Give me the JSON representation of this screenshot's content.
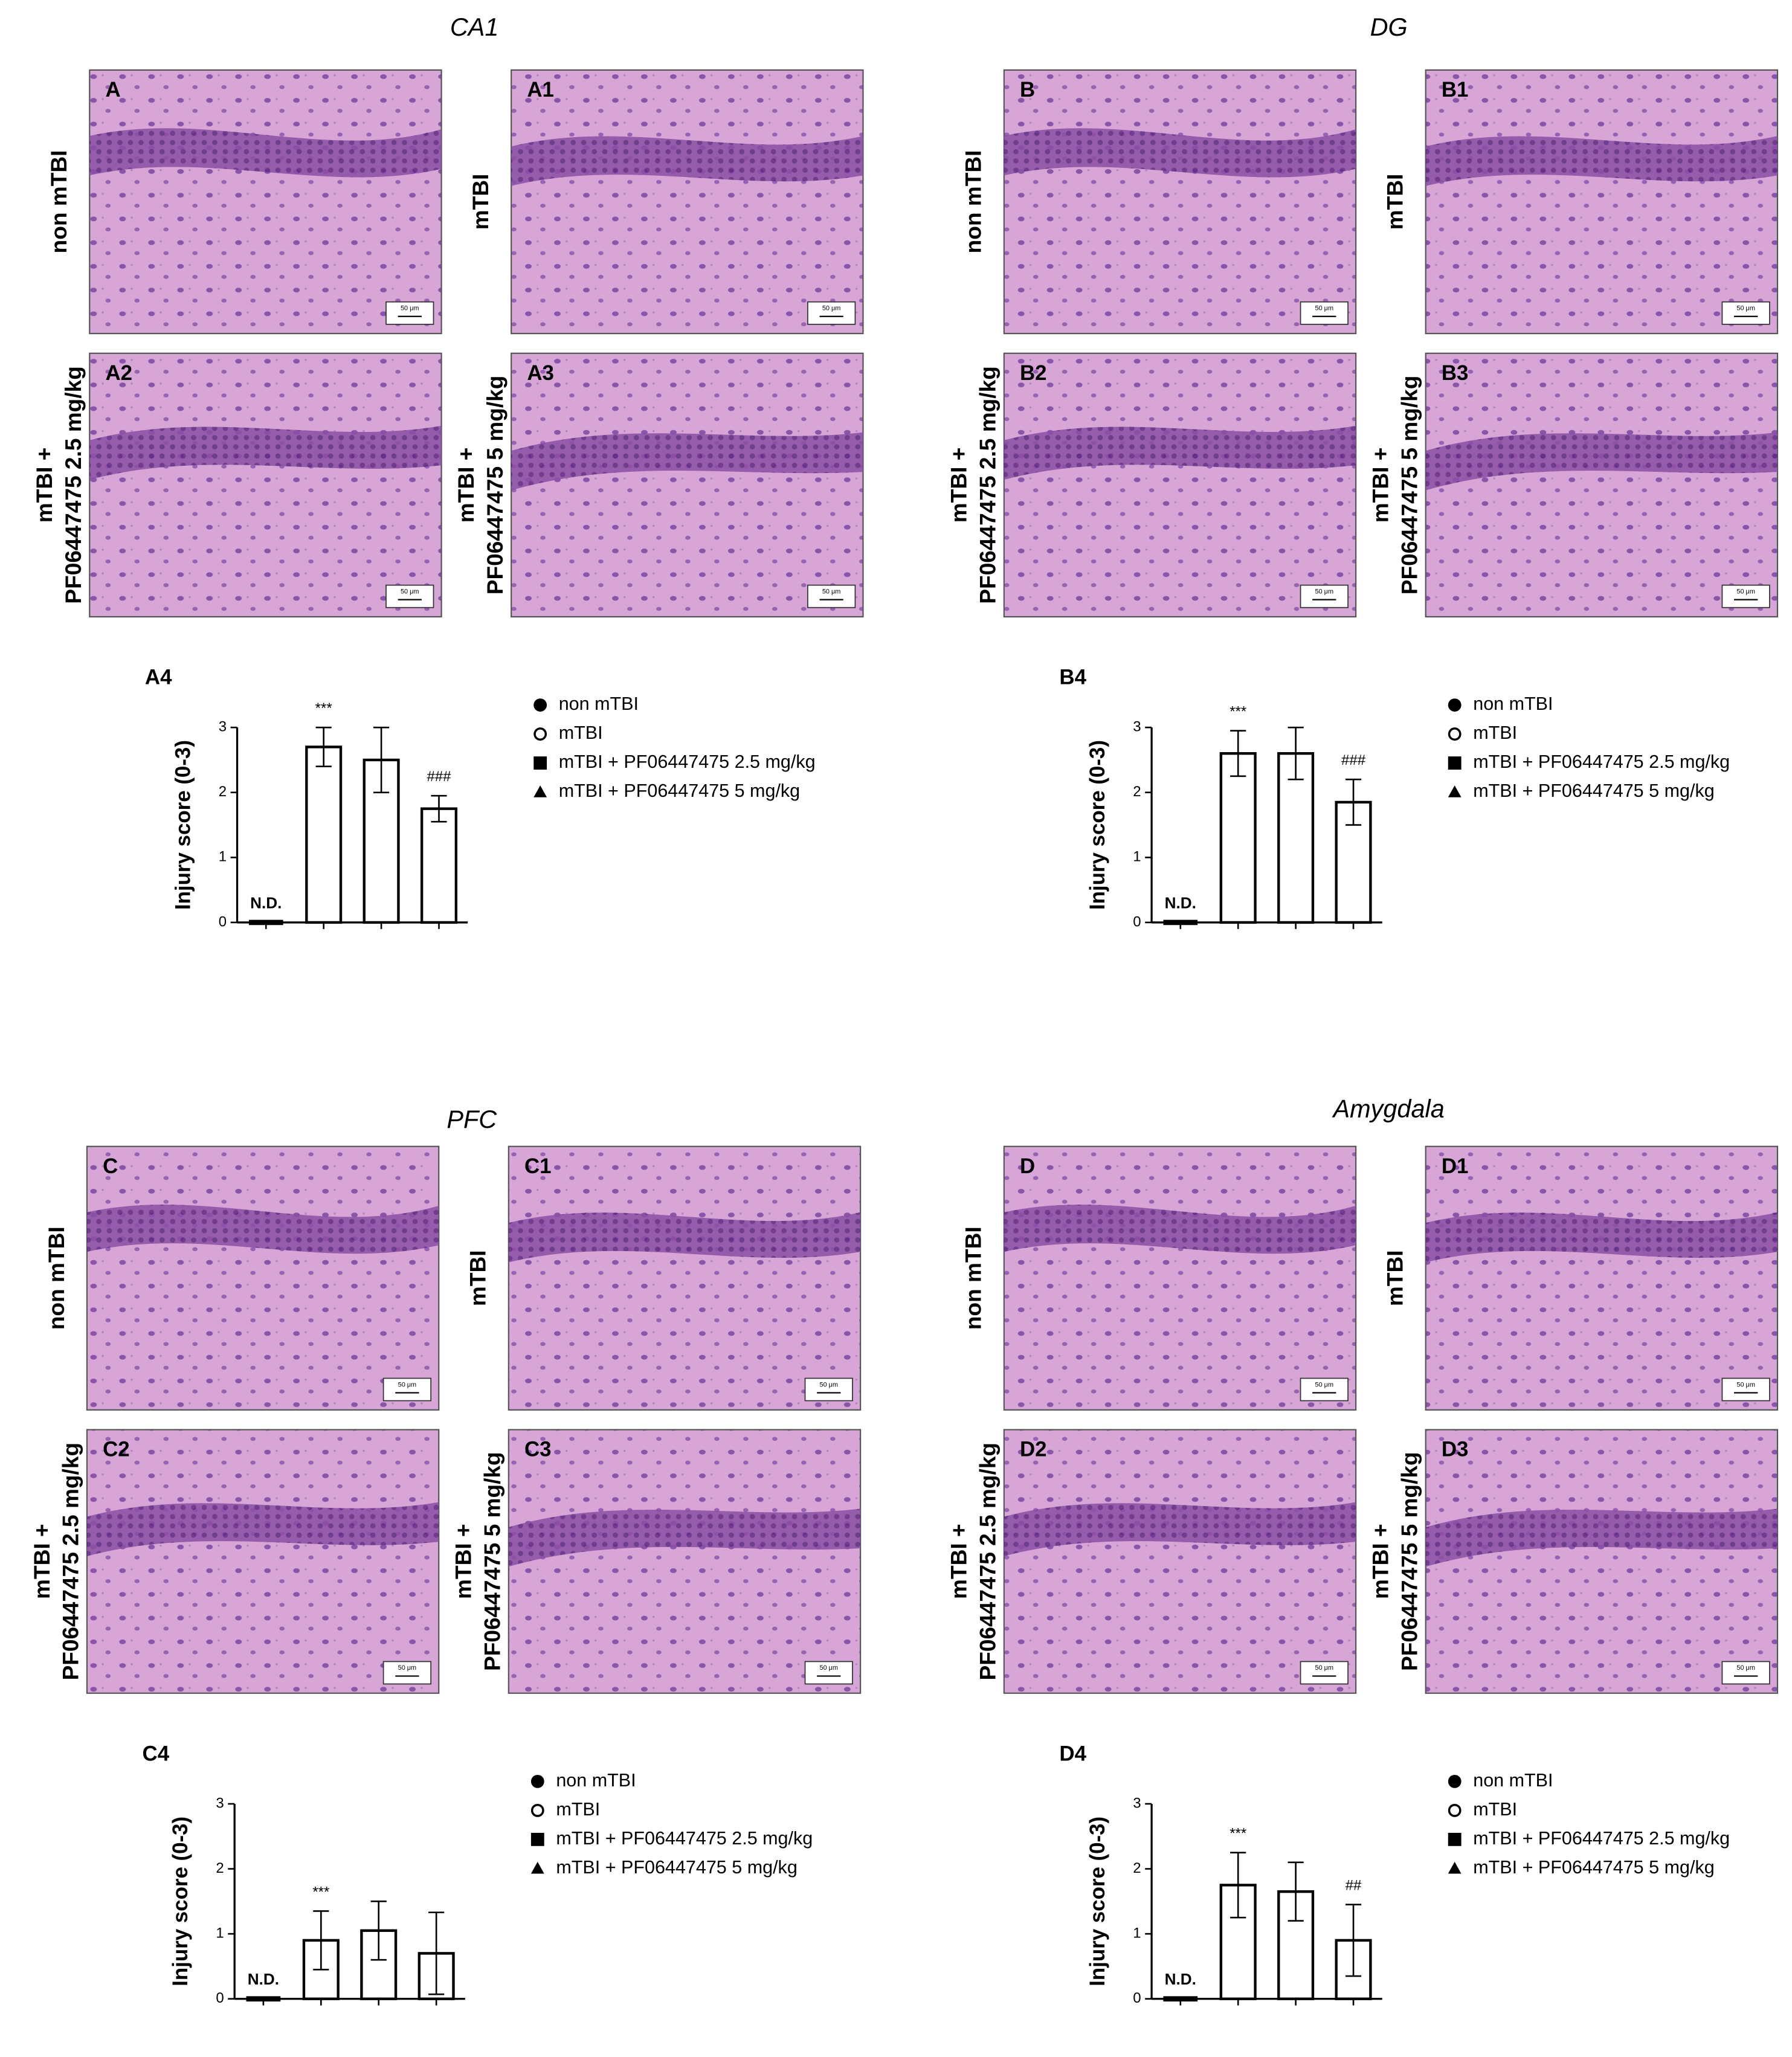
{
  "sections": [
    {
      "title": "CA1",
      "scale_bar": "50 μm",
      "panels": [
        {
          "label": "A",
          "group": [
            "non mTBI"
          ]
        },
        {
          "label": "A1",
          "group": [
            "mTBI"
          ]
        },
        {
          "label": "A2",
          "group": [
            "mTBI +",
            "PF06447475 2.5 mg/kg"
          ]
        },
        {
          "label": "A3",
          "group": [
            "mTBI +",
            "PF06447475 5 mg/kg"
          ]
        }
      ]
    },
    {
      "title": "DG",
      "scale_bar": "50 μm",
      "panels": [
        {
          "label": "B",
          "group": [
            "non mTBI"
          ]
        },
        {
          "label": "B1",
          "group": [
            "mTBI"
          ]
        },
        {
          "label": "B2",
          "group": [
            "mTBI +",
            "PF06447475 2.5 mg/kg"
          ]
        },
        {
          "label": "B3",
          "group": [
            "mTBI +",
            "PF06447475 5 mg/kg"
          ]
        }
      ]
    },
    {
      "title": "PFC",
      "scale_bar": "50 μm",
      "panels": [
        {
          "label": "C",
          "group": [
            "non mTBI"
          ]
        },
        {
          "label": "C1",
          "group": [
            "mTBI"
          ]
        },
        {
          "label": "C2",
          "group": [
            "mTBI +",
            "PF06447475 2.5 mg/kg"
          ]
        },
        {
          "label": "C3",
          "group": [
            "mTBI +",
            "PF06447475 5 mg/kg"
          ]
        }
      ]
    },
    {
      "title": "Amygdala",
      "scale_bar": "50 μm",
      "panels": [
        {
          "label": "D",
          "group": [
            "non mTBI"
          ]
        },
        {
          "label": "D1",
          "group": [
            "mTBI"
          ]
        },
        {
          "label": "D2",
          "group": [
            "mTBI +",
            "PF06447475 2.5 mg/kg"
          ]
        },
        {
          "label": "D3",
          "group": [
            "mTBI +",
            "PF06447475 5 mg/kg"
          ]
        }
      ]
    }
  ],
  "chart_data": [
    {
      "type": "bar",
      "label": "A4",
      "ylabel": "Injury score (0-3)",
      "categories": [
        null,
        null,
        null,
        null
      ],
      "values": [
        0,
        2.7,
        2.5,
        1.75
      ],
      "errors": [
        0,
        0.3,
        0.5,
        0.2
      ],
      "annotations": [
        {
          "index": 0,
          "text": "N.D."
        },
        {
          "index": 1,
          "text": "***"
        },
        {
          "index": 3,
          "text": "###"
        }
      ],
      "legend": [
        "non mTBI",
        "mTBI",
        "mTBI + PF06447475 2.5 mg/kg",
        "mTBI + PF06447475 5 mg/kg"
      ],
      "markers": [
        "circle",
        "open-circle",
        "square",
        "triangle"
      ],
      "ylim": [
        0,
        3
      ],
      "yticks": [
        0,
        1,
        2,
        3
      ]
    },
    {
      "type": "bar",
      "label": "B4",
      "ylabel": "Injury score (0-3)",
      "categories": [
        null,
        null,
        null,
        null
      ],
      "values": [
        0,
        2.6,
        2.6,
        1.85
      ],
      "errors": [
        0,
        0.35,
        0.4,
        0.35
      ],
      "annotations": [
        {
          "index": 0,
          "text": "N.D."
        },
        {
          "index": 1,
          "text": "***"
        },
        {
          "index": 3,
          "text": "###"
        }
      ],
      "legend": [
        "non mTBI",
        "mTBI",
        "mTBI + PF06447475 2.5 mg/kg",
        "mTBI + PF06447475 5 mg/kg"
      ],
      "markers": [
        "circle",
        "open-circle",
        "square",
        "triangle"
      ],
      "ylim": [
        0,
        3
      ],
      "yticks": [
        0,
        1,
        2,
        3
      ]
    },
    {
      "type": "bar",
      "label": "C4",
      "ylabel": "Injury score (0-3)",
      "categories": [
        null,
        null,
        null,
        null
      ],
      "values": [
        0,
        0.9,
        1.05,
        0.7
      ],
      "errors": [
        0,
        0.45,
        0.45,
        0.63
      ],
      "annotations": [
        {
          "index": 0,
          "text": "N.D."
        },
        {
          "index": 1,
          "text": "***"
        }
      ],
      "legend": [
        "non mTBI",
        "mTBI",
        "mTBI + PF06447475 2.5 mg/kg",
        "mTBI + PF06447475 5 mg/kg"
      ],
      "markers": [
        "circle",
        "open-circle",
        "square",
        "triangle"
      ],
      "ylim": [
        0,
        3
      ],
      "yticks": [
        0,
        1,
        2,
        3
      ]
    },
    {
      "type": "bar",
      "label": "D4",
      "ylabel": "Injury score (0-3)",
      "categories": [
        null,
        null,
        null,
        null
      ],
      "values": [
        0,
        1.75,
        1.65,
        0.9
      ],
      "errors": [
        0,
        0.5,
        0.45,
        0.55
      ],
      "annotations": [
        {
          "index": 0,
          "text": "N.D."
        },
        {
          "index": 1,
          "text": "***"
        },
        {
          "index": 3,
          "text": "##"
        }
      ],
      "legend": [
        "non mTBI",
        "mTBI",
        "mTBI + PF06447475 2.5 mg/kg",
        "mTBI + PF06447475 5 mg/kg"
      ],
      "markers": [
        "circle",
        "open-circle",
        "square",
        "triangle"
      ],
      "ylim": [
        0,
        3
      ],
      "yticks": [
        0,
        1,
        2,
        3
      ]
    }
  ]
}
